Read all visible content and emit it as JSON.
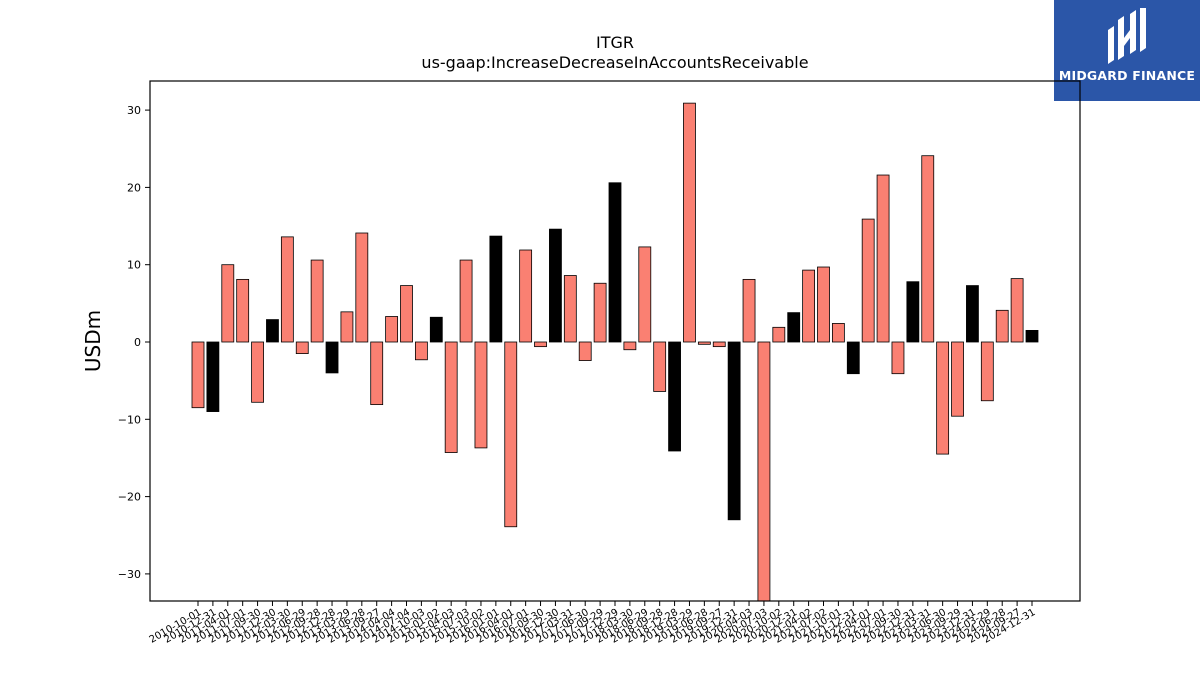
{
  "brand": {
    "name": "MIDGARD FINANCE",
    "bg_color": "#2b56a8"
  },
  "chart_data": {
    "type": "bar",
    "title": "ITGR",
    "subtitle": "us-gaap:IncreaseDecreaseInAccountsReceivable",
    "xlabel": "",
    "ylabel": "USDm",
    "ylim": [
      -33.5,
      34
    ],
    "yticks": [
      -30,
      -20,
      -10,
      0,
      10,
      20,
      30
    ],
    "ytick_labels": [
      "−30",
      "−20",
      "−10",
      "0",
      "10",
      "20",
      "30"
    ],
    "grid": false,
    "colors": {
      "quarterly": "#fa8072",
      "annual": "#000000"
    },
    "categories": [
      "2010-10-01",
      "2010-12-31",
      "2011-04-01",
      "2011-07-01",
      "2011-09-30",
      "2011-12-30",
      "2012-03-30",
      "2012-06-29",
      "2012-09-28",
      "2012-12-28",
      "2013-03-29",
      "2013-06-28",
      "2013-09-27",
      "2014-04-04",
      "2014-07-04",
      "2014-10-03",
      "2015-01-02",
      "2015-04-03",
      "2015-07-03",
      "2015-10-02",
      "2016-01-01",
      "2016-04-01",
      "2016-07-01",
      "2016-09-30",
      "2016-12-30",
      "2017-03-31",
      "2017-06-30",
      "2017-09-29",
      "2017-12-29",
      "2018-03-30",
      "2018-06-29",
      "2018-09-28",
      "2018-12-28",
      "2019-03-29",
      "2019-06-28",
      "2019-09-27",
      "2019-12-31",
      "2020-04-03",
      "2020-07-03",
      "2020-10-02",
      "2020-12-31",
      "2021-04-02",
      "2021-07-02",
      "2021-10-01",
      "2021-12-31",
      "2022-04-01",
      "2022-07-01",
      "2022-09-30",
      "2022-12-31",
      "2023-03-31",
      "2023-06-30",
      "2023-09-29",
      "2023-12-31",
      "2024-03-29",
      "2024-06-28",
      "2024-09-27",
      "2024-12-31"
    ],
    "values": [
      -8.5,
      -9.0,
      10.0,
      8.1,
      -7.8,
      2.9,
      13.6,
      -1.5,
      10.6,
      -4.0,
      3.9,
      14.1,
      -8.1,
      3.3,
      7.3,
      -2.3,
      3.2,
      -14.3,
      10.6,
      -13.7,
      13.7,
      -23.9,
      11.9,
      -0.6,
      14.6,
      8.6,
      -2.4,
      7.6,
      20.6,
      -1.0,
      12.3,
      -6.4,
      -14.1,
      30.9,
      -0.3,
      -0.6,
      -23.0,
      8.1,
      -33.5,
      1.9,
      3.8,
      9.3,
      9.7,
      2.4,
      -4.1,
      15.9,
      21.6,
      -4.1,
      7.8,
      24.1,
      -14.5,
      -9.6,
      7.3,
      -7.6,
      4.1,
      8.2,
      1.5
    ],
    "annual": [
      false,
      true,
      false,
      false,
      false,
      true,
      false,
      false,
      false,
      true,
      false,
      false,
      false,
      false,
      false,
      false,
      true,
      false,
      false,
      false,
      true,
      false,
      false,
      false,
      true,
      false,
      false,
      false,
      true,
      false,
      false,
      false,
      true,
      false,
      false,
      false,
      true,
      false,
      false,
      false,
      true,
      false,
      false,
      false,
      true,
      false,
      false,
      false,
      true,
      false,
      false,
      false,
      true,
      false,
      false,
      false,
      true
    ]
  }
}
